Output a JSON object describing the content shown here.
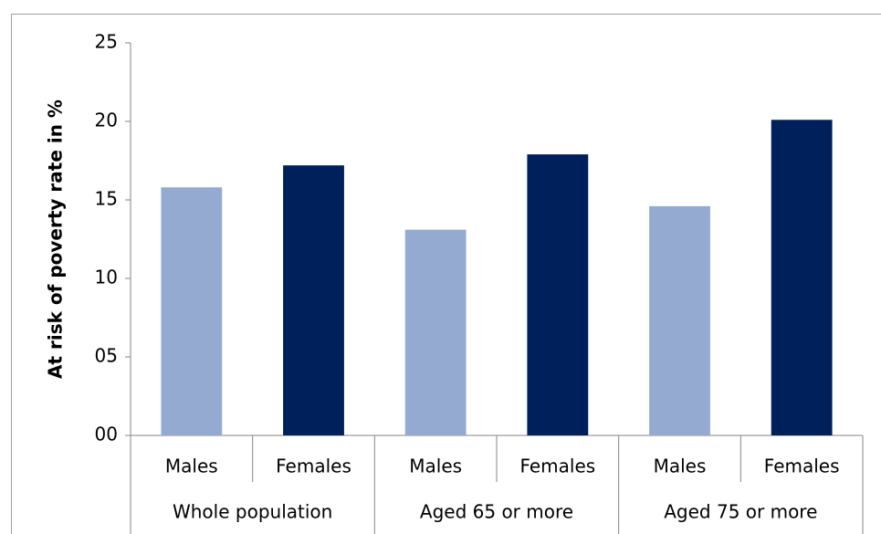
{
  "chart_data": {
    "type": "bar",
    "y_label": "At risk of poverty rate in %",
    "categories": [
      "Whole population",
      "Aged 65 or more",
      "Aged 75 or more"
    ],
    "series": [
      {
        "name": "Males",
        "color": "#95aad0",
        "values": [
          15.8,
          13.1,
          14.6
        ]
      },
      {
        "name": "Females",
        "color": "#00205b",
        "values": [
          17.2,
          17.9,
          20.1
        ]
      }
    ],
    "ylim": [
      0,
      25
    ],
    "yticks": [
      {
        "value": 0,
        "label": "00"
      },
      {
        "value": 5,
        "label": "05"
      },
      10,
      15,
      20,
      25
    ]
  }
}
